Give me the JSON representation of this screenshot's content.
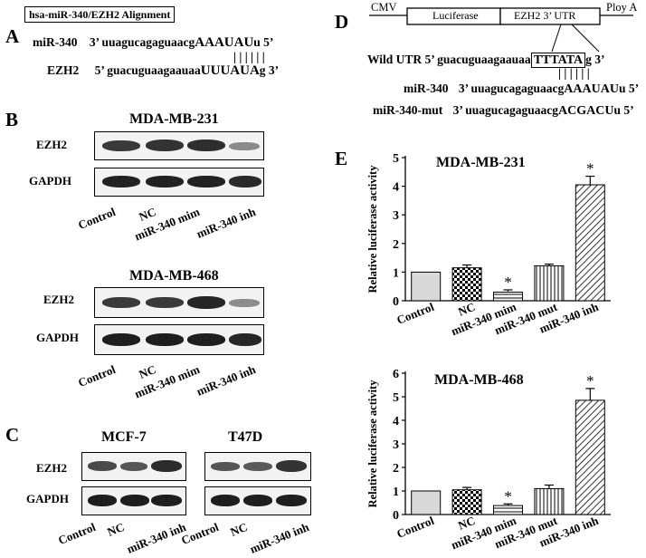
{
  "panels": {
    "A": "A",
    "B": "B",
    "C": "C",
    "D": "D",
    "E": "E"
  },
  "panelA": {
    "title": "hsa-miR-340/EZH2 Alignment",
    "mir_label": "miR-340",
    "mir_5": "3’",
    "mir_lower": "uuagucagaguaacg",
    "mir_upper": "AAAUAU",
    "mir_tail": "u",
    "mir_3": "5’",
    "ezh2_label": "EZH2",
    "ezh2_5": "5’",
    "ezh2_lower": "guacuguaagaauaa",
    "ezh2_upper": "UUUAUA",
    "ezh2_tail": "g",
    "ezh2_3": "3’",
    "pairs": "| | | | | |"
  },
  "panelB": {
    "title1": "MDA-MB-231",
    "title2": "MDA-MB-468",
    "row1": "EZH2",
    "row2": "GAPDH",
    "lanes": [
      "Control",
      "NC",
      "miR-340 mim",
      "miR-340 inh"
    ]
  },
  "panelC": {
    "title1": "MCF-7",
    "title2": "T47D",
    "row1": "EZH2",
    "row2": "GAPDH",
    "lanes": [
      "Control",
      "NC",
      "miR-340 inh"
    ]
  },
  "panelD": {
    "cmv": "CMV",
    "luc": "Luciferase",
    "utr": "EZH2 3’ UTR",
    "polya": "Ploy A",
    "wild_label": "Wild UTR",
    "wild_5": "5’",
    "wild_lower": "guacuguaagaauaa",
    "wild_box": "TTTATA",
    "wild_tail": "g",
    "wild_3": "3’",
    "pairs": "| | | | | |",
    "mir_label": "miR-340",
    "mir_3": "3’",
    "mir_lower": "uuagucagaguaacg",
    "mir_upper": "AAAUAU",
    "mir_tail": "u",
    "mir_5": "5’",
    "mut_label": "miR-340-mut",
    "mut_3": "3’",
    "mut_lower": "uuagucagaguaacg",
    "mut_upper": "ACGACU",
    "mut_tail": "u",
    "mut_5": "5’"
  },
  "chart_data": [
    {
      "type": "bar",
      "title": "MDA-MB-231",
      "ylabel": "Relative luciferase activity",
      "categories": [
        "Control",
        "NC",
        "miR-340 mim",
        "miR-340 mut",
        "miR-340 inh"
      ],
      "values": [
        1.0,
        1.15,
        0.3,
        1.22,
        4.05
      ],
      "errors": [
        0,
        0.1,
        0.08,
        0.06,
        0.3
      ],
      "significant": [
        false,
        false,
        true,
        false,
        true
      ],
      "sig_marker": "*",
      "ylim": [
        0,
        5
      ],
      "yticks": [
        "0",
        "1",
        "2",
        "3",
        "4",
        "5"
      ]
    },
    {
      "type": "bar",
      "title": "MDA-MB-468",
      "ylabel": "Relative luciferase activity",
      "categories": [
        "Control",
        "NC",
        "miR-340 mim",
        "miR-340 mut",
        "miR-340 inh"
      ],
      "values": [
        1.0,
        1.05,
        0.38,
        1.1,
        4.85
      ],
      "errors": [
        0,
        0.1,
        0.07,
        0.15,
        0.5
      ],
      "significant": [
        false,
        false,
        true,
        false,
        true
      ],
      "sig_marker": "*",
      "ylim": [
        0,
        6
      ],
      "yticks": [
        "0",
        "1",
        "2",
        "3",
        "4",
        "5",
        "6"
      ]
    }
  ]
}
